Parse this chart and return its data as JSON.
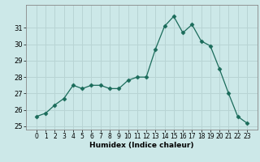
{
  "x": [
    0,
    1,
    2,
    3,
    4,
    5,
    6,
    7,
    8,
    9,
    10,
    11,
    12,
    13,
    14,
    15,
    16,
    17,
    18,
    19,
    20,
    21,
    22,
    23
  ],
  "y": [
    25.6,
    25.8,
    26.3,
    26.7,
    27.5,
    27.3,
    27.5,
    27.5,
    27.3,
    27.3,
    27.8,
    28.0,
    28.0,
    29.7,
    31.1,
    31.7,
    30.7,
    31.2,
    30.2,
    29.9,
    28.5,
    27.0,
    25.6,
    25.2
  ],
  "line_color": "#1a6b5a",
  "marker": "D",
  "marker_size": 2.5,
  "bg_color": "#cce8e8",
  "grid_color": "#b8d4d4",
  "xlabel": "Humidex (Indice chaleur)",
  "ylim": [
    24.8,
    32.4
  ],
  "yticks": [
    25,
    26,
    27,
    28,
    29,
    30,
    31
  ],
  "xticks": [
    0,
    1,
    2,
    3,
    4,
    5,
    6,
    7,
    8,
    9,
    10,
    11,
    12,
    13,
    14,
    15,
    16,
    17,
    18,
    19,
    20,
    21,
    22,
    23
  ]
}
